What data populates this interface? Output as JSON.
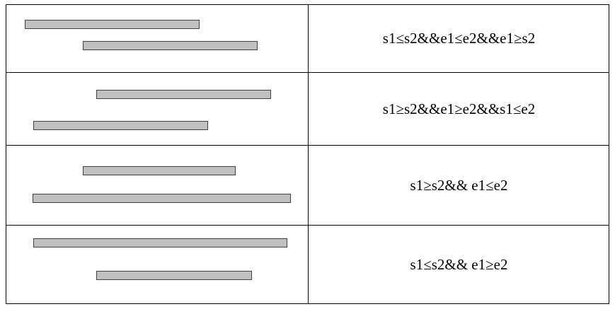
{
  "colors": {
    "bar_fill": "#c0c0c0",
    "bar_border": "#404040",
    "grid": "#000000"
  },
  "rows": [
    {
      "condition": "s1≤s2&&e1≤e2&&e1≥s2"
    },
    {
      "condition": "s1≥s2&&e1≥e2&&s1≤e2"
    },
    {
      "condition": "s1≥s2&& e1≤e2"
    },
    {
      "condition": "s1≤s2&& e1≥e2"
    }
  ]
}
